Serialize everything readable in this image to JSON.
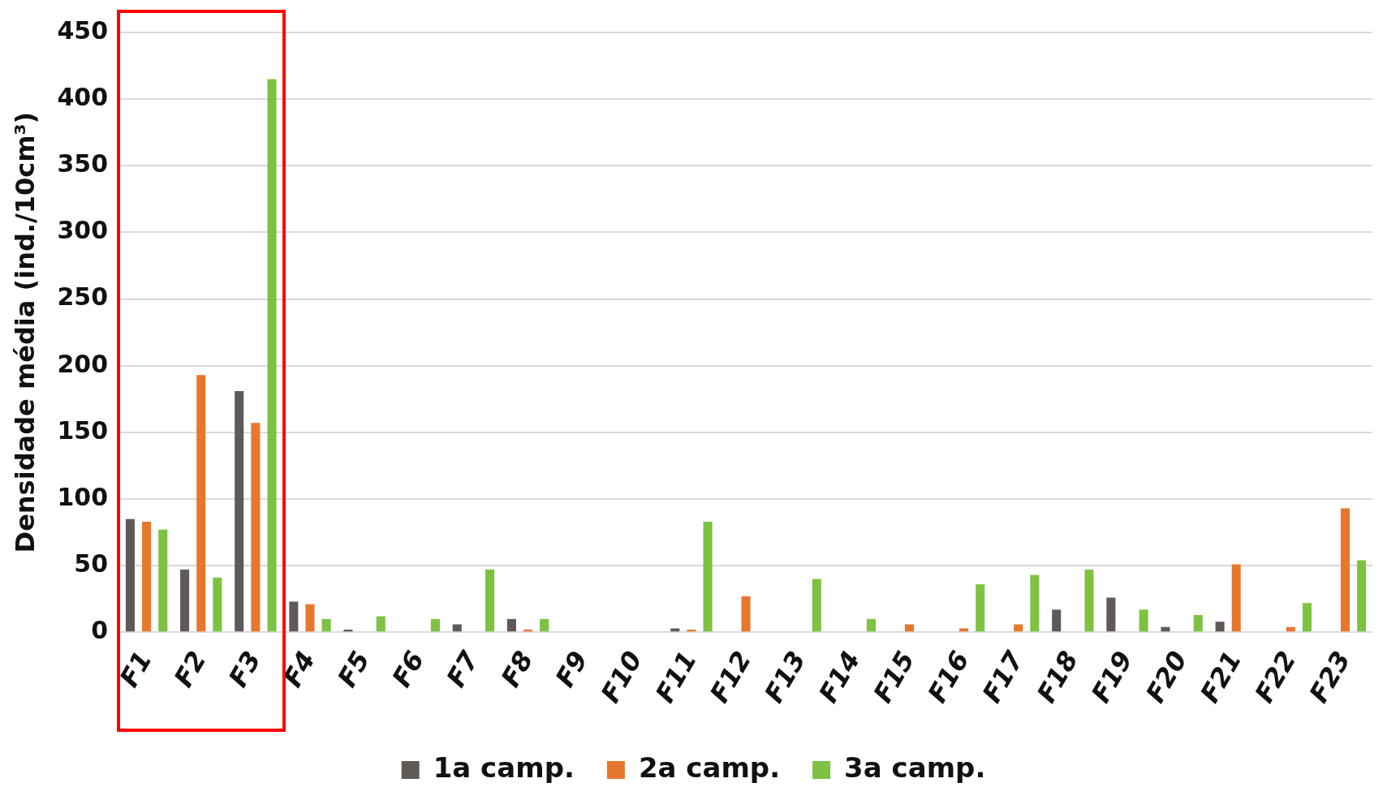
{
  "chart_data": {
    "type": "bar",
    "ylabel": "Densidade média (ind./10cm³)",
    "categories": [
      "F1",
      "F2",
      "F3",
      "F4",
      "F5",
      "F6",
      "F7",
      "F8",
      "F9",
      "F10",
      "F11",
      "F12",
      "F13",
      "F14",
      "F15",
      "F16",
      "F17",
      "F18",
      "F19",
      "F20",
      "F21",
      "F22",
      "F23"
    ],
    "series": [
      {
        "name": "1a camp.",
        "color": "#5f5a58",
        "values": [
          85,
          47,
          181,
          23,
          2,
          0,
          6,
          10,
          0,
          0,
          3,
          0,
          0,
          0,
          0,
          0,
          0,
          17,
          26,
          4,
          8,
          0,
          0
        ]
      },
      {
        "name": "2a camp.",
        "color": "#e8772e",
        "values": [
          83,
          193,
          157,
          21,
          0,
          0,
          0,
          2,
          0,
          0,
          2,
          27,
          0,
          0,
          6,
          3,
          6,
          0,
          0,
          0,
          51,
          4,
          93
        ]
      },
      {
        "name": "3a camp.",
        "color": "#7dc242",
        "values": [
          77,
          41,
          415,
          10,
          12,
          10,
          47,
          10,
          0,
          0,
          83,
          0,
          40,
          10,
          0,
          36,
          43,
          47,
          17,
          13,
          0,
          22,
          54
        ]
      }
    ],
    "ylim": [
      0,
      450
    ],
    "yticks": [
      0,
      50,
      100,
      150,
      200,
      250,
      300,
      350,
      400,
      450
    ],
    "grid": "y",
    "legend": "bottom"
  }
}
